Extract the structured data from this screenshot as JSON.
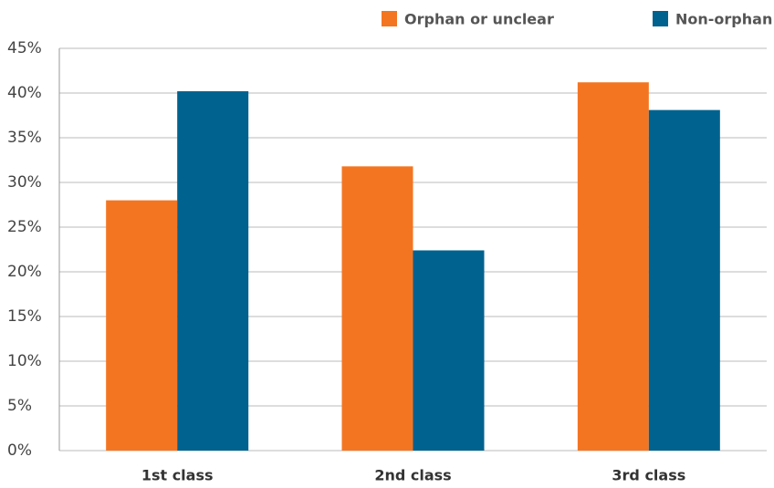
{
  "chart_data": {
    "type": "bar",
    "categories": [
      "1st class",
      "2nd class",
      "3rd class"
    ],
    "series": [
      {
        "name": "Orphan or unclear",
        "color": "#f47521",
        "values": [
          28,
          31.8,
          41.2
        ]
      },
      {
        "name": "Non-orphan",
        "color": "#00628f",
        "values": [
          40.2,
          22.4,
          38.1
        ]
      }
    ],
    "ylim": [
      0,
      45
    ],
    "yticks": [
      {
        "value": 0,
        "label": "0%"
      },
      {
        "value": 5,
        "label": "5%"
      },
      {
        "value": 10,
        "label": "10%"
      },
      {
        "value": 15,
        "label": "15%"
      },
      {
        "value": 20,
        "label": "20%"
      },
      {
        "value": 25,
        "label": "25%"
      },
      {
        "value": 30,
        "label": "30%"
      },
      {
        "value": 35,
        "label": "35%"
      },
      {
        "value": 40,
        "label": "40%"
      },
      {
        "value": 45,
        "label": "45%"
      }
    ],
    "grid": true,
    "legend": "top-right"
  }
}
